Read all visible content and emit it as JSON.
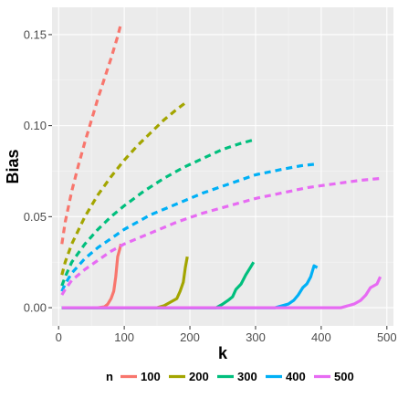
{
  "chart_data": {
    "type": "line",
    "title": "",
    "xlabel": "k",
    "ylabel": "Bias",
    "xlim": [
      -10,
      510
    ],
    "ylim": [
      -0.01,
      0.165
    ],
    "xticks": [
      0,
      100,
      200,
      300,
      400,
      500
    ],
    "xtick_labels": [
      "0",
      "100",
      "200",
      "300",
      "400",
      "500"
    ],
    "yticks": [
      0.0,
      0.05,
      0.1,
      0.15
    ],
    "ytick_labels": [
      "0.00",
      "0.05",
      "0.10",
      "0.15"
    ],
    "grid": true,
    "legend": {
      "title": "n",
      "position": "bottom",
      "entries": [
        "100",
        "200",
        "300",
        "400",
        "500"
      ]
    },
    "colors": {
      "100": "#F8766D",
      "200": "#A3A500",
      "300": "#00BF7D",
      "400": "#00B0F6",
      "500": "#E76BF3"
    },
    "series": [
      {
        "name": "100",
        "style": "dashed",
        "x": [
          5,
          10,
          20,
          30,
          40,
          50,
          60,
          70,
          80,
          90,
          95
        ],
        "y": [
          0.035,
          0.047,
          0.064,
          0.078,
          0.091,
          0.103,
          0.115,
          0.126,
          0.137,
          0.149,
          0.156
        ]
      },
      {
        "name": "100",
        "style": "solid",
        "x": [
          5,
          60,
          70,
          75,
          80,
          84,
          87,
          90,
          93,
          95
        ],
        "y": [
          0.0,
          0.0,
          0.0005,
          0.002,
          0.005,
          0.009,
          0.017,
          0.028,
          0.032,
          0.035
        ]
      },
      {
        "name": "200",
        "style": "dashed",
        "x": [
          5,
          10,
          20,
          40,
          60,
          80,
          100,
          120,
          140,
          160,
          180,
          195
        ],
        "y": [
          0.018,
          0.025,
          0.035,
          0.05,
          0.062,
          0.072,
          0.081,
          0.089,
          0.096,
          0.103,
          0.109,
          0.113
        ]
      },
      {
        "name": "200",
        "style": "solid",
        "x": [
          5,
          150,
          160,
          170,
          180,
          185,
          190,
          193,
          196
        ],
        "y": [
          0.0,
          0.0,
          0.001,
          0.003,
          0.005,
          0.009,
          0.014,
          0.022,
          0.028
        ]
      },
      {
        "name": "300",
        "style": "dashed",
        "x": [
          5,
          10,
          20,
          40,
          60,
          80,
          100,
          130,
          160,
          190,
          220,
          250,
          275,
          295
        ],
        "y": [
          0.012,
          0.017,
          0.025,
          0.035,
          0.043,
          0.05,
          0.056,
          0.064,
          0.071,
          0.077,
          0.082,
          0.087,
          0.09,
          0.092
        ]
      },
      {
        "name": "300",
        "style": "solid",
        "x": [
          5,
          240,
          250,
          258,
          265,
          270,
          278,
          285,
          292,
          297
        ],
        "y": [
          0.0,
          0.0,
          0.002,
          0.004,
          0.006,
          0.01,
          0.013,
          0.018,
          0.022,
          0.025
        ]
      },
      {
        "name": "400",
        "style": "dashed",
        "x": [
          5,
          10,
          20,
          40,
          60,
          80,
          100,
          140,
          180,
          220,
          260,
          300,
          340,
          370,
          395
        ],
        "y": [
          0.009,
          0.013,
          0.019,
          0.027,
          0.033,
          0.038,
          0.043,
          0.051,
          0.057,
          0.063,
          0.068,
          0.073,
          0.076,
          0.078,
          0.079
        ]
      },
      {
        "name": "400",
        "style": "solid",
        "x": [
          5,
          330,
          340,
          350,
          358,
          365,
          372,
          378,
          384,
          389,
          394
        ],
        "y": [
          0.0,
          0.0,
          0.001,
          0.002,
          0.004,
          0.007,
          0.011,
          0.013,
          0.017,
          0.023,
          0.022
        ]
      },
      {
        "name": "500",
        "style": "dashed",
        "x": [
          5,
          10,
          20,
          40,
          60,
          80,
          100,
          140,
          180,
          220,
          260,
          300,
          340,
          380,
          420,
          460,
          490
        ],
        "y": [
          0.007,
          0.01,
          0.015,
          0.021,
          0.026,
          0.031,
          0.035,
          0.041,
          0.047,
          0.052,
          0.056,
          0.06,
          0.063,
          0.066,
          0.068,
          0.07,
          0.071
        ]
      },
      {
        "name": "500",
        "style": "solid",
        "x": [
          5,
          430,
          440,
          450,
          460,
          468,
          475,
          480,
          485,
          490
        ],
        "y": [
          0.0,
          0.0,
          0.001,
          0.002,
          0.004,
          0.007,
          0.011,
          0.012,
          0.013,
          0.017
        ]
      }
    ]
  }
}
